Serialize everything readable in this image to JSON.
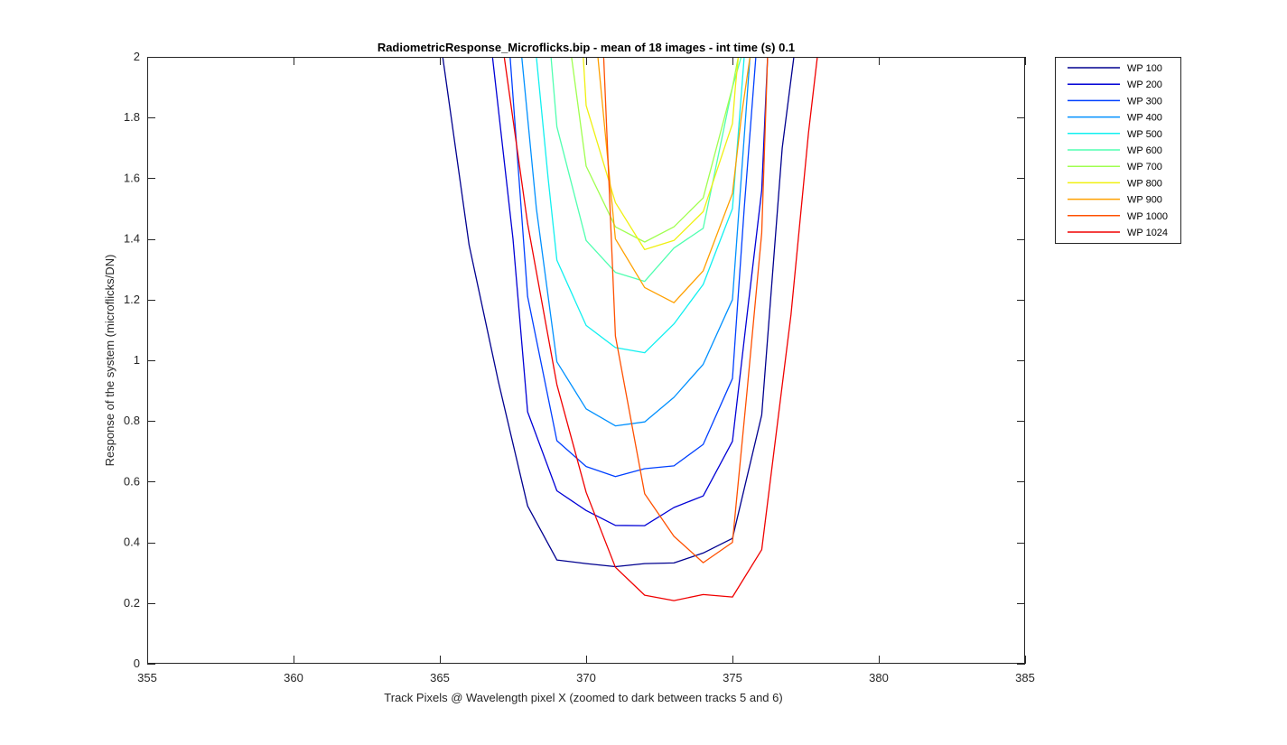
{
  "chart_data": {
    "type": "line",
    "title": "RadiometricResponse_Microflicks.bip - mean of 18 images - int time (s) 0.1",
    "xlabel": "Track Pixels @ Wavelength pixel X  (zoomed to dark between tracks 5 and 6)",
    "ylabel": "Response of the system (microflicks/DN)",
    "xlim": [
      355,
      385
    ],
    "ylim": [
      0,
      2
    ],
    "xticks": [
      355,
      360,
      365,
      370,
      375,
      380,
      385
    ],
    "yticks": [
      0,
      0.2,
      0.4,
      0.6,
      0.8,
      1,
      1.2,
      1.4,
      1.6,
      1.8,
      2
    ],
    "xtick_labels": [
      "355",
      "360",
      "365",
      "370",
      "375",
      "380",
      "385"
    ],
    "ytick_labels": [
      "0",
      "0.2",
      "0.4",
      "0.6",
      "0.8",
      "1",
      "1.2",
      "1.4",
      "1.6",
      "1.8",
      "2"
    ],
    "grid": false,
    "legend_position": "outside-top-right",
    "series": [
      {
        "name": "WP 100",
        "color": "#00008F",
        "x": [
          365.1,
          366,
          367,
          368,
          369,
          370,
          371,
          372,
          373,
          374,
          375,
          376,
          376.7,
          377.1
        ],
        "y": [
          2.0,
          1.38,
          0.93,
          0.52,
          0.342,
          0.33,
          0.32,
          0.33,
          0.332,
          0.365,
          0.413,
          0.82,
          1.7,
          2.0
        ]
      },
      {
        "name": "WP 200",
        "color": "#0000D6",
        "x": [
          366.8,
          367.5,
          368,
          369,
          370,
          371,
          372,
          373,
          374,
          375,
          375.5,
          376,
          376.2
        ],
        "y": [
          2.0,
          1.4,
          0.83,
          0.57,
          0.505,
          0.456,
          0.455,
          0.515,
          0.553,
          0.733,
          1.15,
          1.56,
          2.0
        ]
      },
      {
        "name": "WP 300",
        "color": "#0040FF",
        "x": [
          367.4,
          368,
          369,
          370,
          371,
          372,
          373,
          374,
          375,
          375.4,
          375.8
        ],
        "y": [
          2.0,
          1.21,
          0.735,
          0.65,
          0.617,
          0.643,
          0.652,
          0.723,
          0.94,
          1.5,
          2.0
        ]
      },
      {
        "name": "WP 400",
        "color": "#0090FF",
        "x": [
          367.8,
          368.3,
          369,
          370,
          371,
          372,
          373,
          374,
          375,
          375.3,
          375.6
        ],
        "y": [
          2.0,
          1.5,
          0.995,
          0.84,
          0.784,
          0.797,
          0.878,
          0.987,
          1.2,
          1.6,
          2.0
        ]
      },
      {
        "name": "WP 500",
        "color": "#10F0F0",
        "x": [
          368.3,
          368.7,
          369,
          370,
          371,
          372,
          373,
          374,
          375,
          375.2,
          375.4
        ],
        "y": [
          2.0,
          1.6,
          1.33,
          1.115,
          1.042,
          1.025,
          1.12,
          1.25,
          1.5,
          1.75,
          2.0
        ]
      },
      {
        "name": "WP 600",
        "color": "#50FFB0",
        "x": [
          368.8,
          369,
          370,
          371,
          372,
          373,
          374,
          375,
          375.15,
          375.3
        ],
        "y": [
          2.0,
          1.77,
          1.395,
          1.29,
          1.26,
          1.37,
          1.435,
          1.9,
          1.95,
          2.0
        ]
      },
      {
        "name": "WP 700",
        "color": "#A0FF50",
        "x": [
          369.5,
          370,
          371,
          372,
          373,
          374,
          375,
          375.1,
          375.2
        ],
        "y": [
          2.0,
          1.64,
          1.44,
          1.39,
          1.44,
          1.535,
          1.9,
          1.95,
          2.0
        ]
      },
      {
        "name": "WP 800",
        "color": "#F0F010",
        "x": [
          369.9,
          370,
          371,
          372,
          373,
          374,
          375,
          375.1,
          375.2
        ],
        "y": [
          2.0,
          1.84,
          1.52,
          1.365,
          1.395,
          1.49,
          1.78,
          1.9,
          2.0
        ]
      },
      {
        "name": "WP 900",
        "color": "#FFA000",
        "x": [
          370.4,
          371,
          372,
          373,
          374,
          375,
          375.3,
          375.6
        ],
        "y": [
          2.0,
          1.4,
          1.24,
          1.19,
          1.295,
          1.55,
          1.8,
          2.0
        ]
      },
      {
        "name": "WP 1000",
        "color": "#FF5000",
        "x": [
          370.6,
          371,
          372,
          373,
          374,
          375,
          375.5,
          376,
          376.2
        ],
        "y": [
          2.0,
          1.08,
          0.56,
          0.42,
          0.333,
          0.4,
          0.9,
          1.42,
          2.0
        ]
      },
      {
        "name": "WP 1024",
        "color": "#F00000",
        "x": [
          367.2,
          368,
          369,
          370,
          371,
          372,
          373,
          374,
          375,
          376,
          377,
          377.6,
          377.9
        ],
        "y": [
          2.0,
          1.45,
          0.92,
          0.565,
          0.318,
          0.226,
          0.208,
          0.228,
          0.22,
          0.376,
          1.15,
          1.75,
          2.0
        ]
      }
    ]
  }
}
